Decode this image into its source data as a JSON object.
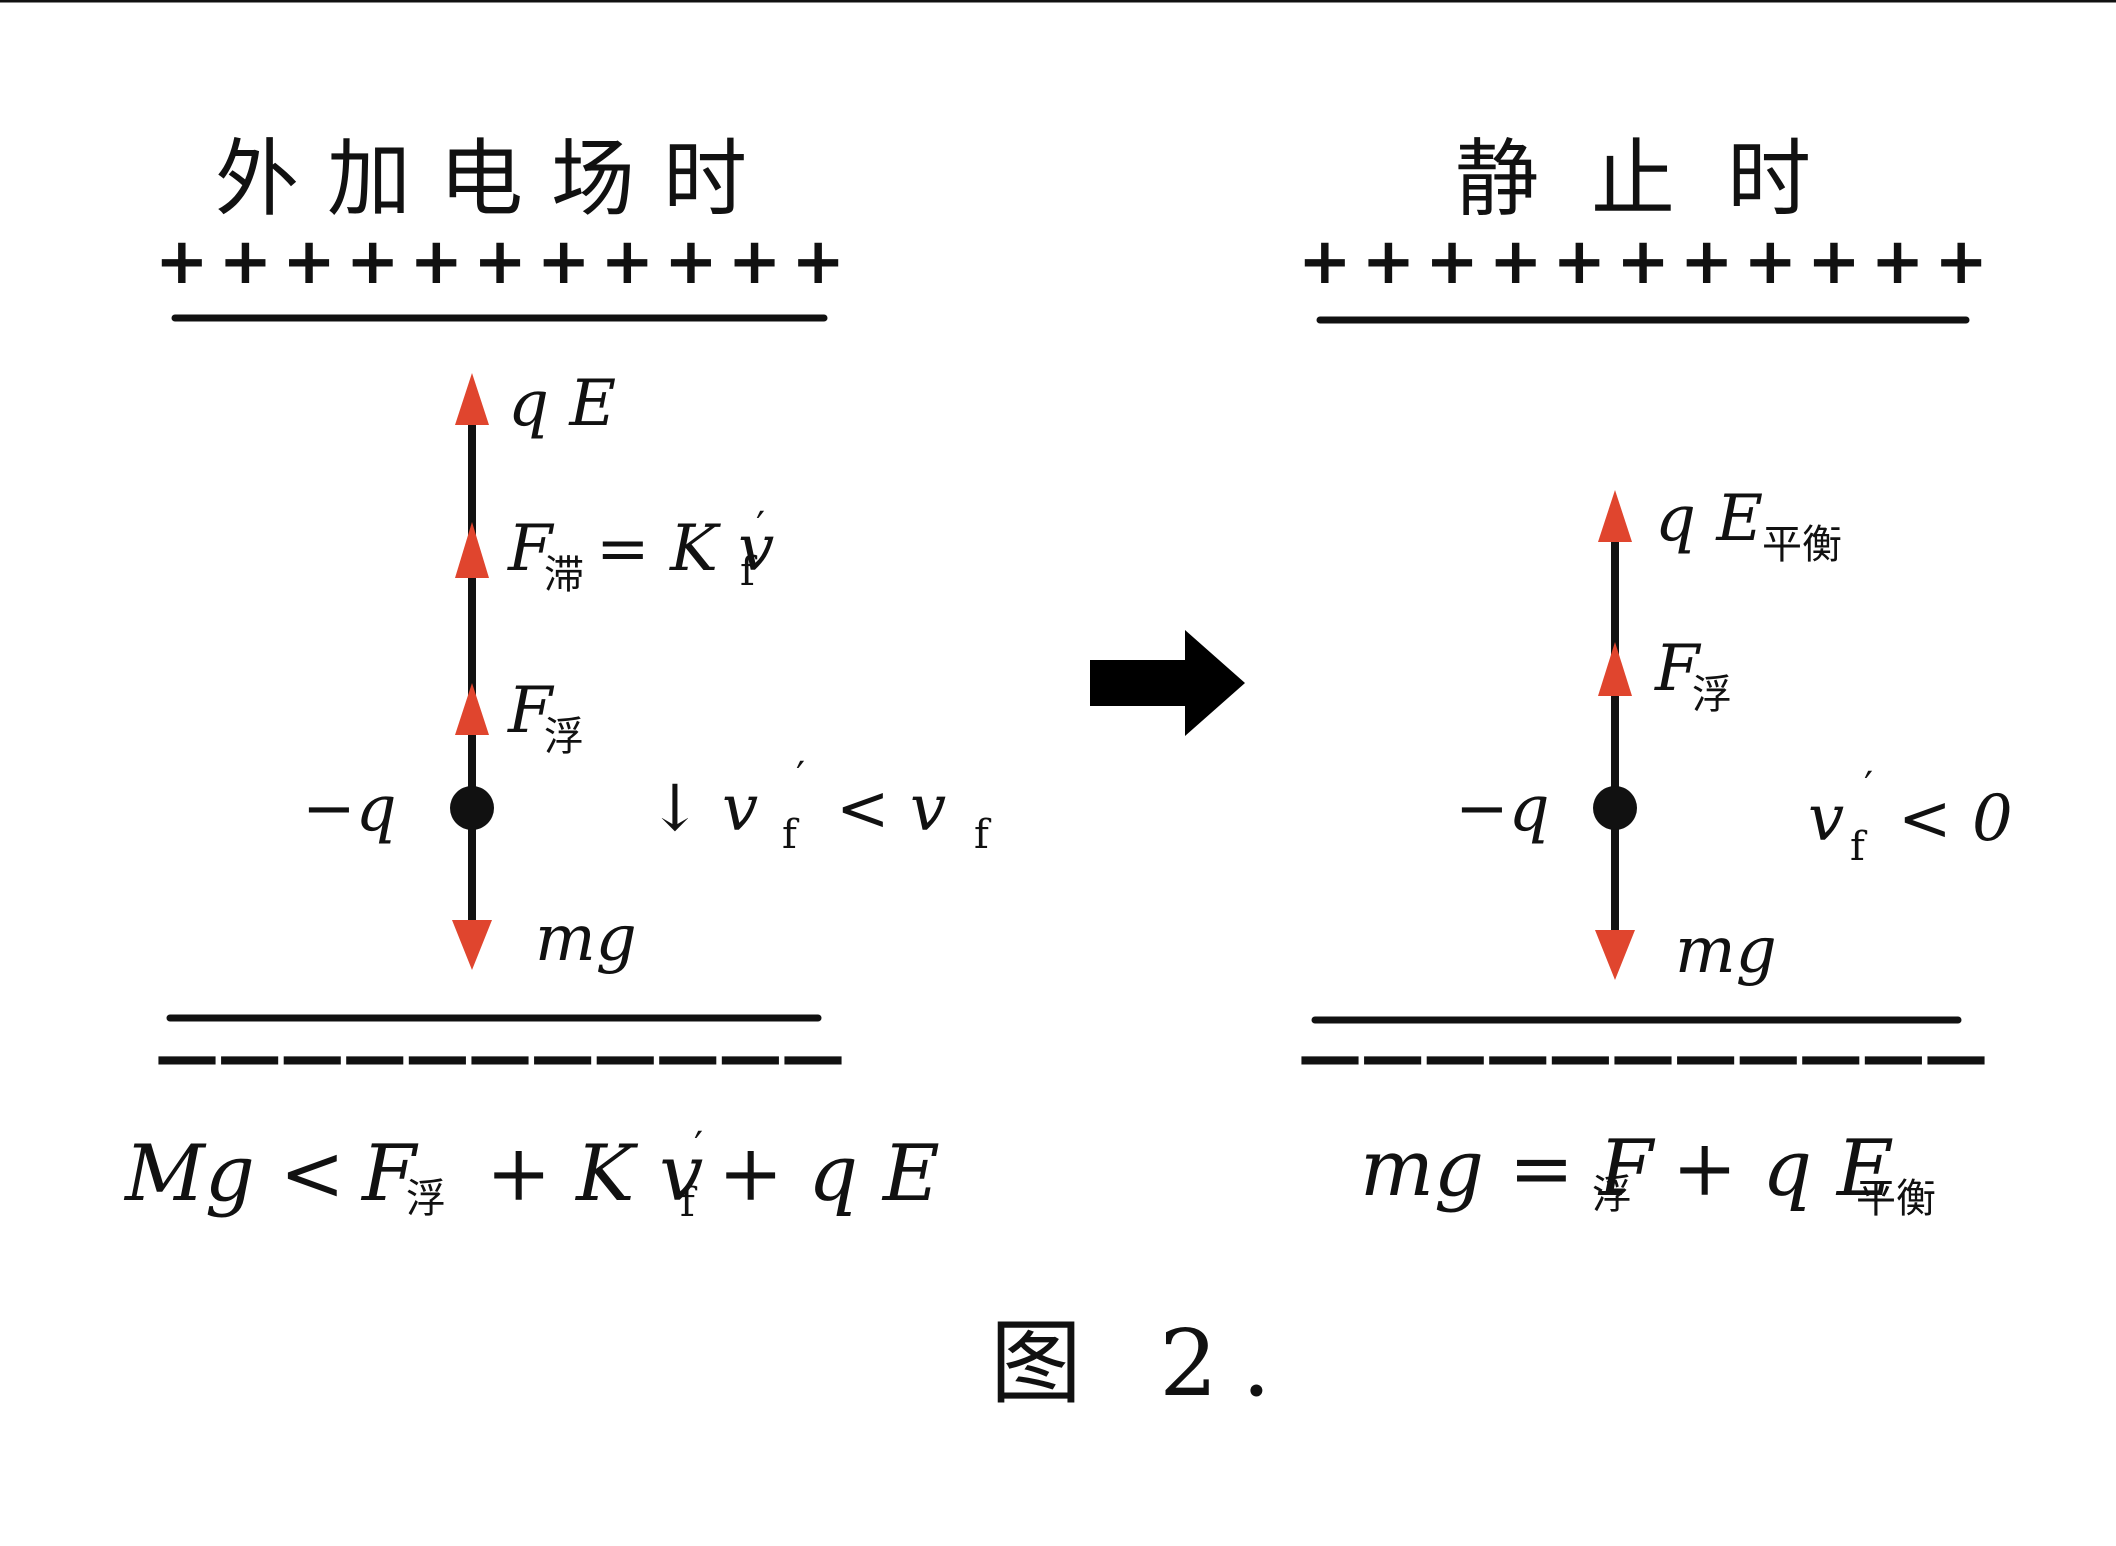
{
  "left": {
    "title": "外加电场时",
    "plus_row": "+ + + + + + + + + + +",
    "minus_row": "— — — — — — — — — — —",
    "label_qE": "q E",
    "label_Fzhi": "F",
    "label_Fzhi_sub": "滞",
    "label_Fzhi_rhs": "= K v",
    "label_Fzhi_rhs_sub": "f",
    "label_Fzhi_prime": "′",
    "label_Ffu": "F",
    "label_Ffu_sub": "浮",
    "label_charge": "−q",
    "label_mg": "mg",
    "velocity": "↓ v",
    "velocity_sub1": "f",
    "velocity_prime": "′",
    "velocity_rhs": "< v",
    "velocity_sub2": "f",
    "equation_lhs": "Mg <",
    "equation_F": "F",
    "equation_F_sub": "浮",
    "equation_plus_kv": "+ K v",
    "equation_kv_sub": "f",
    "equation_prime": "′",
    "equation_tail": "+ q E"
  },
  "right": {
    "title": "静止时",
    "plus_row": "+ + + + + + + + + + +",
    "minus_row": "— — — — — — — — — — —",
    "label_qE": "q E",
    "label_qE_sub": "平衡",
    "label_Ffu": "F",
    "label_Ffu_sub": "浮",
    "label_charge": "−q",
    "label_mg": "mg",
    "velocity": "v",
    "velocity_sub": "f",
    "velocity_prime": "′",
    "velocity_rhs": "< 0",
    "equation_lhs": "mg = F",
    "equation_F_sub": "浮",
    "equation_plus": "+ q E",
    "equation_tail_sub": "平衡"
  },
  "caption": "图 2.",
  "colors": {
    "ink": "#111111",
    "arrow": "#e0452e"
  }
}
